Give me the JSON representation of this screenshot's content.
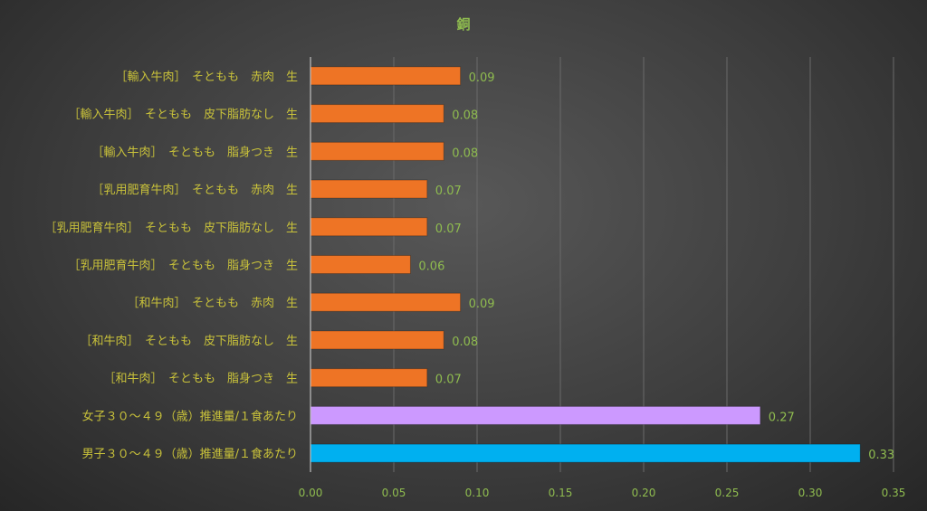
{
  "chart_data": {
    "type": "bar",
    "orientation": "horizontal",
    "title": "銅",
    "xlabel": "",
    "ylabel": "",
    "xlim": [
      0,
      0.35
    ],
    "xticks": [
      "0.00",
      "0.05",
      "0.10",
      "0.15",
      "0.20",
      "0.25",
      "0.30",
      "0.35"
    ],
    "grid": true,
    "categories": [
      "［輸入牛肉］　そともも　赤肉　生",
      "［輸入牛肉］　そともも　皮下脂肪なし　生",
      "［輸入牛肉］　そともも　脂身つき　生",
      "［乳用肥育牛肉］　そともも　赤肉　生",
      "［乳用肥育牛肉］　そともも　皮下脂肪なし　生",
      "［乳用肥育牛肉］　そともも　脂身つき　生",
      "［和牛肉］　そともも　赤肉　生",
      "［和牛肉］　そともも　皮下脂肪なし　生",
      "［和牛肉］　そともも　脂身つき　生",
      "女子３０～４９（歳）推進量/１食あたり",
      "男子３０～４９（歳）推進量/１食あたり"
    ],
    "values": [
      0.09,
      0.08,
      0.08,
      0.07,
      0.07,
      0.06,
      0.09,
      0.08,
      0.07,
      0.27,
      0.33
    ],
    "value_labels": [
      "0.09",
      "0.08",
      "0.08",
      "0.07",
      "0.07",
      "0.06",
      "0.09",
      "0.08",
      "0.07",
      "0.27",
      "0.33"
    ],
    "colors": [
      "#ee7425",
      "#ee7425",
      "#ee7425",
      "#ee7425",
      "#ee7425",
      "#ee7425",
      "#ee7425",
      "#ee7425",
      "#ee7425",
      "#cc99ff",
      "#00b0f0"
    ]
  }
}
